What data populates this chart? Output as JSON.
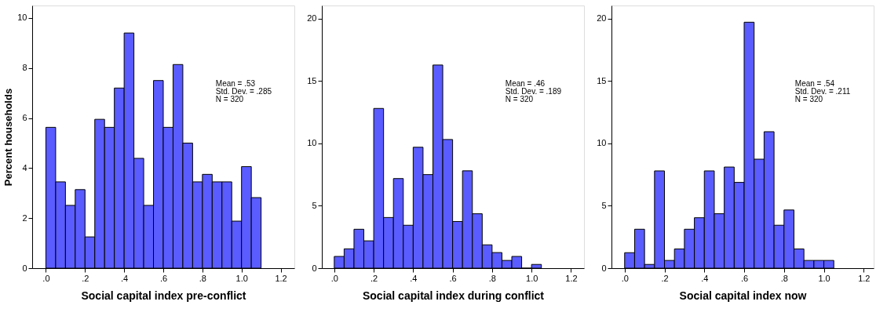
{
  "chart_data": [
    {
      "type": "histogram",
      "xlabel": "Social capital index pre-conflict",
      "ylabel": "Percent households",
      "color": "#5a5cff",
      "grid": false,
      "bins": [
        0,
        0.05,
        0.1,
        0.15,
        0.2,
        0.25,
        0.3,
        0.35,
        0.4,
        0.45,
        0.5,
        0.55,
        0.6,
        0.65,
        0.7,
        0.75,
        0.8,
        0.85,
        0.9,
        0.95,
        1.0,
        1.05,
        1.1
      ],
      "values": [
        5.63,
        3.45,
        2.51,
        3.14,
        1.25,
        5.95,
        5.63,
        7.2,
        9.4,
        4.39,
        2.51,
        7.5,
        5.63,
        8.14,
        5.0,
        3.45,
        3.75,
        3.45,
        3.45,
        1.88,
        4.06,
        2.82
      ],
      "xlim": [
        -0.07,
        1.27
      ],
      "ylim": [
        0,
        10.5
      ],
      "xticks": [
        {
          "value": 0,
          "label": ".0"
        },
        {
          "value": 0.2,
          "label": ".2"
        },
        {
          "value": 0.4,
          "label": ".4"
        },
        {
          "value": 0.6,
          "label": ".6"
        },
        {
          "value": 0.8,
          "label": ".8"
        },
        {
          "value": 1.0,
          "label": "1.0"
        },
        {
          "value": 1.2,
          "label": "1.2"
        }
      ],
      "yticks": [
        0,
        2,
        4,
        6,
        8,
        10
      ],
      "annotations": [
        "Mean = .53",
        "Std. Dev. = .285",
        "N = 320"
      ]
    },
    {
      "type": "histogram",
      "xlabel": "Social capital index during conflict",
      "color": "#5a5cff",
      "grid": false,
      "bins": [
        0,
        0.05,
        0.1,
        0.15,
        0.2,
        0.25,
        0.3,
        0.35,
        0.4,
        0.45,
        0.5,
        0.55,
        0.6,
        0.65,
        0.7,
        0.75,
        0.8,
        0.85,
        0.9,
        0.95,
        1.0,
        1.05
      ],
      "values": [
        0.94,
        1.55,
        3.12,
        2.19,
        12.8,
        4.06,
        7.18,
        3.44,
        9.69,
        7.5,
        16.28,
        10.31,
        3.74,
        7.8,
        4.36,
        1.87,
        1.25,
        0.62,
        0.94,
        0,
        0.3
      ],
      "xlim": [
        -0.063,
        1.266
      ],
      "ylim": [
        0,
        21.05
      ],
      "xticks": [
        {
          "value": 0,
          "label": ".0"
        },
        {
          "value": 0.2,
          "label": ".2"
        },
        {
          "value": 0.4,
          "label": ".4"
        },
        {
          "value": 0.6,
          "label": ".6"
        },
        {
          "value": 0.8,
          "label": ".8"
        },
        {
          "value": 1.0,
          "label": "1.0"
        },
        {
          "value": 1.2,
          "label": "1.2"
        }
      ],
      "yticks": [
        0,
        5,
        10,
        15,
        20
      ],
      "annotations": [
        "Mean = .46",
        "Std. Dev. = .189",
        "N = 320"
      ]
    },
    {
      "type": "histogram",
      "xlabel": "Social capital index now",
      "color": "#5a5cff",
      "grid": false,
      "bins": [
        0,
        0.05,
        0.1,
        0.15,
        0.2,
        0.25,
        0.3,
        0.35,
        0.4,
        0.45,
        0.5,
        0.55,
        0.6,
        0.65,
        0.7,
        0.75,
        0.8,
        0.85,
        0.9,
        0.95,
        1.0,
        1.05
      ],
      "values": [
        1.24,
        3.12,
        0.3,
        7.79,
        0.62,
        1.54,
        3.12,
        4.04,
        7.79,
        4.36,
        8.1,
        6.87,
        19.7,
        8.73,
        10.93,
        3.44,
        4.66,
        1.54,
        0.62,
        0.62,
        0.62
      ],
      "xlim": [
        -0.066,
        1.25
      ],
      "ylim": [
        0,
        21.04
      ],
      "xticks": [
        {
          "value": 0,
          "label": ".0"
        },
        {
          "value": 0.2,
          "label": ".2"
        },
        {
          "value": 0.4,
          "label": ".4"
        },
        {
          "value": 0.6,
          "label": ".6"
        },
        {
          "value": 0.8,
          "label": ".8"
        },
        {
          "value": 1.0,
          "label": "1.0"
        },
        {
          "value": 1.2,
          "label": "1.2"
        }
      ],
      "yticks": [
        0,
        5,
        10,
        15,
        20
      ],
      "annotations": [
        "Mean = .54",
        "Std. Dev. = .211",
        "N = 320"
      ]
    }
  ]
}
